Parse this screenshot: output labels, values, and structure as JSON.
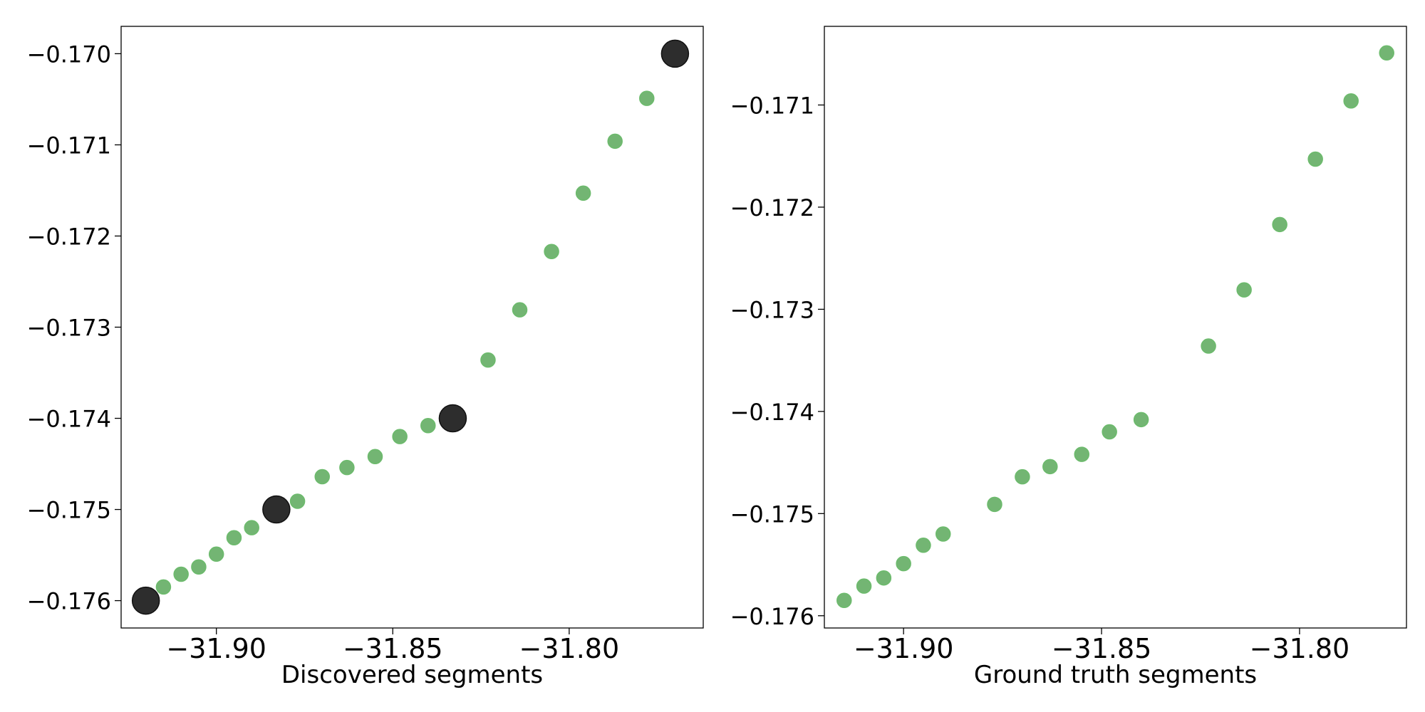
{
  "chart_data": [
    {
      "type": "scatter",
      "xlabel": "Discovered segments",
      "ylabel": "",
      "xlim": [
        -31.927,
        -31.762
      ],
      "ylim": [
        -176.3,
        -169.7
      ],
      "xticks": [
        -31.9,
        -31.85,
        -31.8
      ],
      "xtick_labels": [
        "−31.90",
        "−31.85",
        "−31.80"
      ],
      "yticks": [
        -176,
        -175,
        -174,
        -173,
        -172,
        -171,
        -170
      ],
      "ytick_labels": [
        "−0.176",
        "−0.175",
        "−0.174",
        "−0.173",
        "−0.172",
        "−0.171",
        "−0.170"
      ],
      "y_scale_note": "",
      "grid": false,
      "series": [
        {
          "color": "#5aa85a",
          "marker": "small-circle",
          "x": [
            -31.915,
            -31.91,
            -31.905,
            -31.9,
            -31.895,
            -31.89,
            -31.877,
            -31.87,
            -31.863,
            -31.855,
            -31.848,
            -31.84,
            -31.823,
            -31.814,
            -31.805,
            -31.796,
            -31.787,
            -31.778
          ],
          "y": [
            -175.85,
            -175.71,
            -175.63,
            -175.49,
            -175.31,
            -175.2,
            -174.91,
            -174.64,
            -174.54,
            -174.42,
            -174.2,
            -174.08,
            -173.36,
            -172.81,
            -172.17,
            -171.53,
            -170.96,
            -170.49
          ]
        },
        {
          "color": "#222222",
          "marker": "large-circle",
          "x": [
            -31.92,
            -31.883,
            -31.833,
            -31.77
          ],
          "y": [
            -176.0,
            -175.0,
            -174.0,
            -170.0
          ]
        }
      ]
    },
    {
      "type": "scatter",
      "xlabel": "Ground truth segments",
      "ylabel": "",
      "xlim": [
        -31.92,
        -31.773
      ],
      "ylim": [
        -176.12,
        -170.23
      ],
      "xticks": [
        -31.9,
        -31.85,
        -31.8
      ],
      "xtick_labels": [
        "−31.90",
        "−31.85",
        "−31.80"
      ],
      "yticks": [
        -176,
        -175,
        -174,
        -173,
        -172,
        -171
      ],
      "ytick_labels": [
        "−0.176",
        "−0.175",
        "−0.174",
        "−0.173",
        "−0.172",
        "−0.171"
      ],
      "grid": false,
      "series": [
        {
          "color": "#5aa85a",
          "marker": "small-circle",
          "x": [
            -31.915,
            -31.91,
            -31.905,
            -31.9,
            -31.895,
            -31.89,
            -31.877,
            -31.87,
            -31.863,
            -31.855,
            -31.848,
            -31.84,
            -31.823,
            -31.814,
            -31.805,
            -31.796,
            -31.787,
            -31.778
          ],
          "y": [
            -175.85,
            -175.71,
            -175.63,
            -175.49,
            -175.31,
            -175.2,
            -174.91,
            -174.64,
            -174.54,
            -174.42,
            -174.2,
            -174.08,
            -173.36,
            -172.81,
            -172.17,
            -171.53,
            -170.96,
            -170.49
          ]
        }
      ]
    }
  ]
}
